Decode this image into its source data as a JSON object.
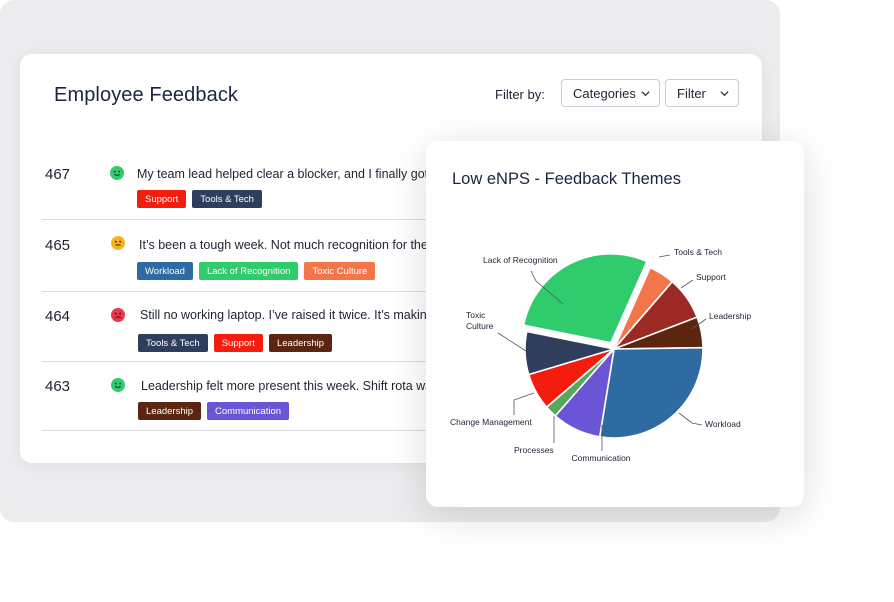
{
  "feedback": {
    "title": "Employee Feedback",
    "filter_label": "Filter by:",
    "categories_select": "Categories",
    "filter_select": "Filter",
    "rows": [
      {
        "id": "467",
        "sentiment": "positive",
        "text": "My team lead helped clear a blocker, and I finally got access",
        "tags": [
          "Support",
          "Tools & Tech"
        ]
      },
      {
        "id": "465",
        "sentiment": "neutral",
        "text": "It’s been a tough week. Not much recognition for the extra ho",
        "tags": [
          "Workload",
          "Lack of Recognition",
          "Toxic Culture"
        ]
      },
      {
        "id": "464",
        "sentiment": "negative",
        "text": "Still no working laptop. I’ve raised it twice. It’s making my wo",
        "tags": [
          "Tools & Tech",
          "Support",
          "Leadership"
        ]
      },
      {
        "id": "463",
        "sentiment": "positive",
        "text": "Leadership felt more present this week. Shift rota was explo",
        "tags": [
          "Leadership",
          "Communication"
        ]
      }
    ]
  },
  "tag_colors": {
    "Support": "#f41c0c",
    "Tools & Tech": "#2f3e5c",
    "Workload": "#2e6ba3",
    "Lack of Recognition": "#2fcb6c",
    "Toxic Culture": "#f3754a",
    "Leadership": "#5c2510",
    "Communication": "#6b55d6"
  },
  "sentiment_colors": {
    "positive": "#2fcb6c",
    "neutral": "#f5b41c",
    "negative": "#e8384a"
  },
  "chart": {
    "title": "Low eNPS - Feedback Themes"
  },
  "chart_data": {
    "type": "pie",
    "title": "Low eNPS - Feedback Themes",
    "exploded_slice": "Lack of Recognition",
    "slices": [
      {
        "label": "Tools & Tech",
        "value": 4.7,
        "color": "#f3754a"
      },
      {
        "label": "Support",
        "value": 7.8,
        "color": "#9b2a25"
      },
      {
        "label": "Leadership",
        "value": 5.6,
        "color": "#5c2510"
      },
      {
        "label": "Workload",
        "value": 27.8,
        "color": "#2e6ba3"
      },
      {
        "label": "Communication",
        "value": 8.9,
        "color": "#6b55d6"
      },
      {
        "label": "Processes",
        "value": 2.2,
        "color": "#54aa5a"
      },
      {
        "label": "Change Management",
        "value": 6.7,
        "color": "#f41c0c"
      },
      {
        "label": "Toxic Culture",
        "value": 7.8,
        "color": "#2f3e5c"
      },
      {
        "label": "Lack of Recognition",
        "value": 28.5,
        "color": "#2fcb6c"
      }
    ]
  }
}
